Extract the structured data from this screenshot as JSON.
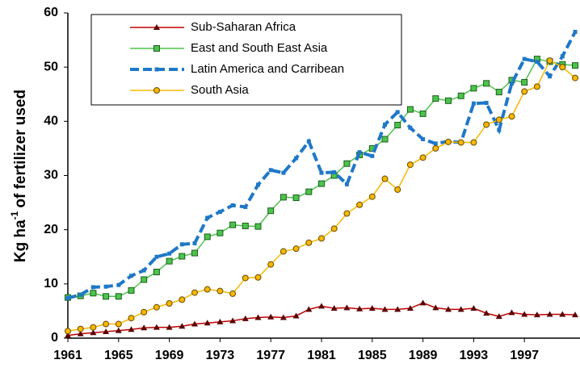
{
  "chart_data": {
    "type": "line",
    "y_label": {
      "text": "Kg ha",
      "sup": "-1",
      "rest": "of fertilizer used"
    },
    "x": [
      1961,
      1962,
      1963,
      1964,
      1965,
      1966,
      1967,
      1968,
      1969,
      1970,
      1971,
      1972,
      1973,
      1974,
      1975,
      1976,
      1977,
      1978,
      1979,
      1980,
      1981,
      1982,
      1983,
      1984,
      1985,
      1986,
      1987,
      1988,
      1989,
      1990,
      1991,
      1992,
      1993,
      1994,
      1995,
      1996,
      1997,
      1998,
      1999,
      2000,
      2001
    ],
    "xlim": [
      1961,
      2001
    ],
    "xticks": [
      1961,
      1965,
      1969,
      1973,
      1977,
      1981,
      1985,
      1989,
      1993,
      1997
    ],
    "ylim": [
      0,
      60
    ],
    "yticks": [
      0,
      10,
      20,
      30,
      40,
      50,
      60
    ],
    "legend": "top-left",
    "series": [
      {
        "name": "Sub-Saharan Africa",
        "color": "#c00000",
        "marker": "triangle",
        "dashed": false,
        "values": [
          0.5,
          0.8,
          1.0,
          1.2,
          1.4,
          1.6,
          1.9,
          2.0,
          2.0,
          2.2,
          2.6,
          2.8,
          3.0,
          3.2,
          3.6,
          3.8,
          3.9,
          3.8,
          4.1,
          5.3,
          5.9,
          5.5,
          5.6,
          5.4,
          5.5,
          5.3,
          5.3,
          5.5,
          6.5,
          5.6,
          5.3,
          5.3,
          5.5,
          4.6,
          4.0,
          4.7,
          4.4,
          4.3,
          4.4,
          4.4,
          4.3
        ]
      },
      {
        "name": "East and South East Asia",
        "color": "#4cc44c",
        "marker": "square",
        "dashed": false,
        "values": [
          7.5,
          7.8,
          8.3,
          7.7,
          7.7,
          8.8,
          10.8,
          12.2,
          14.2,
          15.1,
          15.7,
          18.7,
          19.4,
          20.9,
          20.7,
          20.6,
          23.5,
          26.0,
          25.9,
          27.0,
          28.5,
          30.0,
          32.2,
          33.8,
          35.0,
          36.7,
          39.3,
          42.2,
          41.4,
          44.2,
          43.8,
          44.7,
          46.1,
          47.0,
          45.4,
          47.6,
          47.2,
          51.5,
          51.0,
          50.5,
          50.3
        ]
      },
      {
        "name": "Latin America and Carribean",
        "color": "#1f78c8",
        "marker": "small-square",
        "dashed": true,
        "values": [
          7.4,
          8.0,
          9.4,
          9.5,
          9.8,
          11.5,
          12.5,
          15.0,
          15.6,
          17.3,
          17.5,
          22.2,
          23.3,
          24.5,
          24.2,
          28.3,
          31.0,
          30.5,
          33.2,
          36.3,
          30.5,
          30.6,
          28.4,
          34.3,
          33.6,
          39.4,
          41.7,
          38.8,
          36.7,
          35.9,
          36.3,
          36.1,
          43.3,
          43.4,
          38.4,
          47.0,
          51.5,
          51.0,
          48.3,
          52.0,
          56.5
        ]
      },
      {
        "name": "South Asia",
        "color": "#f5b800",
        "marker": "circle",
        "dashed": false,
        "values": [
          1.3,
          1.7,
          2.0,
          2.6,
          2.6,
          3.7,
          4.8,
          5.7,
          6.4,
          7.1,
          8.4,
          9.0,
          8.7,
          8.2,
          11.1,
          11.2,
          13.6,
          16.0,
          16.5,
          17.6,
          18.4,
          20.2,
          23.0,
          24.6,
          26.1,
          29.4,
          27.4,
          32.0,
          33.3,
          35.0,
          36.2,
          36.1,
          36.1,
          39.4,
          40.3,
          40.9,
          45.5,
          46.4,
          51.2,
          50.0,
          48.0
        ]
      }
    ]
  }
}
